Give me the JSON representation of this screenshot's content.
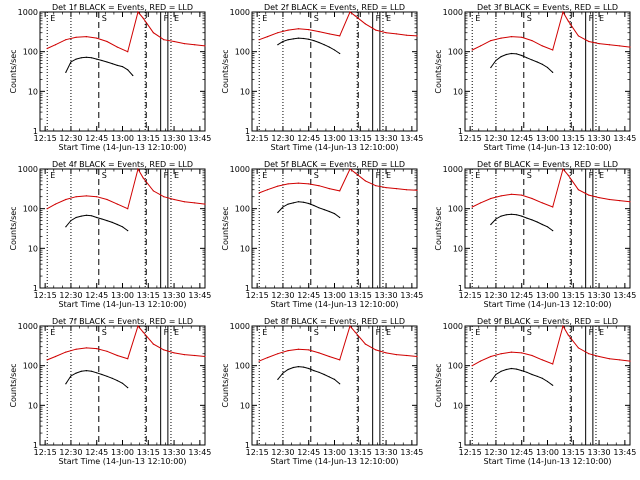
{
  "figure": {
    "x_tick_labels": [
      "12:15",
      "12:30",
      "12:45",
      "13:00",
      "13:15",
      "13:30",
      "13:45"
    ],
    "xlabel": "Start Time (14-Jun-13 12:10:00)",
    "ylabel": "Counts/sec",
    "y_tick_labels": [
      "1",
      "10",
      "100",
      "1000"
    ],
    "marker_letters": [
      "E",
      "S",
      "F",
      "E"
    ],
    "colors": {
      "events": "#000000",
      "lld": "#d00000",
      "axes": "#000000",
      "background": "#ffffff"
    }
  },
  "chart_data": [
    {
      "type": "line",
      "title": "Det 1f BLACK = Events, RED = LLD",
      "x_unit": "minutes",
      "xlim": [
        12.2,
        13.8
      ],
      "ylim": [
        1,
        1000
      ],
      "yscale": "log",
      "dotted_lines": [
        12.27,
        12.5,
        13.22,
        13.47
      ],
      "dashed_lines": [
        12.77,
        13.23
      ],
      "solid_lines": [
        13.37,
        13.44
      ],
      "series": [
        {
          "name": "Events",
          "color": "#000000",
          "x": [
            12.45,
            12.5,
            12.55,
            12.6,
            12.65,
            12.7,
            12.75,
            12.8,
            12.85,
            12.9,
            12.95,
            13.0,
            13.05,
            13.1
          ],
          "y": [
            30,
            55,
            65,
            70,
            72,
            70,
            65,
            60,
            55,
            50,
            45,
            42,
            35,
            25
          ]
        },
        {
          "name": "LLD",
          "color": "#d00000",
          "x": [
            12.27,
            12.35,
            12.45,
            12.55,
            12.65,
            12.75,
            12.85,
            12.95,
            13.05,
            13.15,
            13.2,
            13.3,
            13.4,
            13.5,
            13.6,
            13.7,
            13.8
          ],
          "y": [
            120,
            150,
            200,
            230,
            240,
            220,
            180,
            130,
            100,
            1000,
            700,
            300,
            200,
            180,
            160,
            150,
            140
          ]
        }
      ]
    },
    {
      "type": "line",
      "title": "Det 2f BLACK = Events, RED = LLD",
      "x_unit": "minutes",
      "xlim": [
        12.2,
        13.8
      ],
      "ylim": [
        1,
        1000
      ],
      "yscale": "log",
      "dotted_lines": [
        12.27,
        12.5,
        13.22,
        13.47
      ],
      "dashed_lines": [
        12.77,
        13.23
      ],
      "solid_lines": [
        13.37,
        13.44
      ],
      "series": [
        {
          "name": "Events",
          "color": "#000000",
          "x": [
            12.45,
            12.5,
            12.55,
            12.6,
            12.65,
            12.7,
            12.75,
            12.8,
            12.85,
            12.9,
            12.95,
            13.0,
            13.05
          ],
          "y": [
            150,
            180,
            200,
            210,
            220,
            215,
            205,
            190,
            170,
            150,
            130,
            110,
            90
          ]
        },
        {
          "name": "LLD",
          "color": "#d00000",
          "x": [
            12.27,
            12.35,
            12.45,
            12.55,
            12.65,
            12.75,
            12.85,
            12.95,
            13.05,
            13.15,
            13.2,
            13.3,
            13.4,
            13.5,
            13.6,
            13.7,
            13.8
          ],
          "y": [
            200,
            240,
            300,
            350,
            380,
            360,
            320,
            280,
            250,
            1000,
            800,
            500,
            350,
            300,
            280,
            260,
            250
          ]
        }
      ]
    },
    {
      "type": "line",
      "title": "Det 3f BLACK = Events, RED = LLD",
      "x_unit": "minutes",
      "xlim": [
        12.2,
        13.8
      ],
      "ylim": [
        1,
        1000
      ],
      "yscale": "log",
      "dotted_lines": [
        12.27,
        12.5,
        13.22,
        13.47
      ],
      "dashed_lines": [
        12.77,
        13.23
      ],
      "solid_lines": [
        13.37,
        13.44
      ],
      "series": [
        {
          "name": "Events",
          "color": "#000000",
          "x": [
            12.45,
            12.5,
            12.55,
            12.6,
            12.65,
            12.7,
            12.75,
            12.8,
            12.85,
            12.9,
            12.95,
            13.0,
            13.05
          ],
          "y": [
            40,
            60,
            75,
            85,
            90,
            88,
            80,
            70,
            62,
            55,
            48,
            40,
            30
          ]
        },
        {
          "name": "LLD",
          "color": "#d00000",
          "x": [
            12.27,
            12.35,
            12.45,
            12.55,
            12.65,
            12.75,
            12.85,
            12.95,
            13.05,
            13.15,
            13.2,
            13.3,
            13.4,
            13.5,
            13.6,
            13.7,
            13.8
          ],
          "y": [
            110,
            140,
            190,
            220,
            240,
            230,
            190,
            140,
            110,
            1000,
            600,
            250,
            180,
            160,
            150,
            140,
            130
          ]
        }
      ]
    },
    {
      "type": "line",
      "title": "Det 4f BLACK = Events, RED = LLD",
      "x_unit": "minutes",
      "xlim": [
        12.2,
        13.8
      ],
      "ylim": [
        1,
        1000
      ],
      "yscale": "log",
      "dotted_lines": [
        12.27,
        12.5,
        13.22,
        13.47
      ],
      "dashed_lines": [
        12.77,
        13.23
      ],
      "solid_lines": [
        13.37,
        13.44
      ],
      "series": [
        {
          "name": "Events",
          "color": "#000000",
          "x": [
            12.45,
            12.5,
            12.55,
            12.6,
            12.65,
            12.7,
            12.75,
            12.8,
            12.85,
            12.9,
            12.95,
            13.0,
            13.05
          ],
          "y": [
            35,
            50,
            60,
            65,
            68,
            66,
            60,
            55,
            50,
            45,
            40,
            35,
            28
          ]
        },
        {
          "name": "LLD",
          "color": "#d00000",
          "x": [
            12.27,
            12.35,
            12.45,
            12.55,
            12.65,
            12.75,
            12.85,
            12.95,
            13.05,
            13.15,
            13.2,
            13.3,
            13.4,
            13.5,
            13.6,
            13.7,
            13.8
          ],
          "y": [
            100,
            130,
            170,
            200,
            210,
            200,
            170,
            130,
            100,
            1000,
            600,
            280,
            200,
            170,
            150,
            140,
            130
          ]
        }
      ]
    },
    {
      "type": "line",
      "title": "Det 5f BLACK = Events, RED = LLD",
      "x_unit": "minutes",
      "xlim": [
        12.2,
        13.8
      ],
      "ylim": [
        1,
        1000
      ],
      "yscale": "log",
      "dotted_lines": [
        12.27,
        12.5,
        13.22,
        13.47
      ],
      "dashed_lines": [
        12.77,
        13.23
      ],
      "solid_lines": [
        13.37,
        13.44
      ],
      "series": [
        {
          "name": "Events",
          "color": "#000000",
          "x": [
            12.45,
            12.5,
            12.55,
            12.6,
            12.65,
            12.7,
            12.75,
            12.8,
            12.85,
            12.9,
            12.95,
            13.0,
            13.05
          ],
          "y": [
            80,
            110,
            130,
            140,
            150,
            145,
            135,
            120,
            105,
            95,
            85,
            75,
            60
          ]
        },
        {
          "name": "LLD",
          "color": "#d00000",
          "x": [
            12.27,
            12.35,
            12.45,
            12.55,
            12.65,
            12.75,
            12.85,
            12.95,
            13.05,
            13.15,
            13.2,
            13.3,
            13.4,
            13.5,
            13.6,
            13.7,
            13.8
          ],
          "y": [
            250,
            300,
            370,
            420,
            440,
            420,
            380,
            320,
            280,
            1000,
            800,
            500,
            380,
            340,
            320,
            300,
            290
          ]
        }
      ]
    },
    {
      "type": "line",
      "title": "Det 6f BLACK = Events, RED = LLD",
      "x_unit": "minutes",
      "xlim": [
        12.2,
        13.8
      ],
      "ylim": [
        1,
        1000
      ],
      "yscale": "log",
      "dotted_lines": [
        12.27,
        12.5,
        13.22,
        13.47
      ],
      "dashed_lines": [
        12.77,
        13.23
      ],
      "solid_lines": [
        13.37,
        13.44
      ],
      "series": [
        {
          "name": "Events",
          "color": "#000000",
          "x": [
            12.45,
            12.5,
            12.55,
            12.6,
            12.65,
            12.7,
            12.75,
            12.8,
            12.85,
            12.9,
            12.95,
            13.0,
            13.05
          ],
          "y": [
            40,
            55,
            65,
            70,
            72,
            70,
            65,
            58,
            52,
            46,
            40,
            35,
            28
          ]
        },
        {
          "name": "LLD",
          "color": "#d00000",
          "x": [
            12.27,
            12.35,
            12.45,
            12.55,
            12.65,
            12.75,
            12.85,
            12.95,
            13.05,
            13.15,
            13.2,
            13.3,
            13.4,
            13.5,
            13.6,
            13.7,
            13.8
          ],
          "y": [
            110,
            140,
            180,
            210,
            230,
            220,
            180,
            140,
            110,
            1000,
            700,
            300,
            220,
            190,
            170,
            160,
            150
          ]
        }
      ]
    },
    {
      "type": "line",
      "title": "Det 7f BLACK = Events, RED = LLD",
      "x_unit": "minutes",
      "xlim": [
        12.2,
        13.8
      ],
      "ylim": [
        1,
        1000
      ],
      "yscale": "log",
      "dotted_lines": [
        12.27,
        12.5,
        13.22,
        13.47
      ],
      "dashed_lines": [
        12.77,
        13.23
      ],
      "solid_lines": [
        13.37,
        13.44
      ],
      "series": [
        {
          "name": "Events",
          "color": "#000000",
          "x": [
            12.45,
            12.5,
            12.55,
            12.6,
            12.65,
            12.7,
            12.75,
            12.8,
            12.85,
            12.9,
            12.95,
            13.0,
            13.05
          ],
          "y": [
            35,
            55,
            65,
            72,
            75,
            72,
            66,
            60,
            54,
            48,
            42,
            36,
            28
          ]
        },
        {
          "name": "LLD",
          "color": "#d00000",
          "x": [
            12.27,
            12.35,
            12.45,
            12.55,
            12.65,
            12.75,
            12.85,
            12.95,
            13.05,
            13.15,
            13.2,
            13.3,
            13.4,
            13.5,
            13.6,
            13.7,
            13.8
          ],
          "y": [
            140,
            170,
            220,
            260,
            280,
            270,
            230,
            180,
            150,
            1000,
            700,
            350,
            250,
            210,
            190,
            180,
            170
          ]
        }
      ]
    },
    {
      "type": "line",
      "title": "Det 8f BLACK = Events, RED = LLD",
      "x_unit": "minutes",
      "xlim": [
        12.2,
        13.8
      ],
      "ylim": [
        1,
        1000
      ],
      "yscale": "log",
      "dotted_lines": [
        12.27,
        12.5,
        13.22,
        13.47
      ],
      "dashed_lines": [
        12.77,
        13.23
      ],
      "solid_lines": [
        13.37,
        13.44
      ],
      "series": [
        {
          "name": "Events",
          "color": "#000000",
          "x": [
            12.45,
            12.5,
            12.55,
            12.6,
            12.65,
            12.7,
            12.75,
            12.8,
            12.85,
            12.9,
            12.95,
            13.0,
            13.05
          ],
          "y": [
            45,
            65,
            80,
            90,
            95,
            92,
            85,
            75,
            68,
            60,
            52,
            45,
            35
          ]
        },
        {
          "name": "LLD",
          "color": "#d00000",
          "x": [
            12.27,
            12.35,
            12.45,
            12.55,
            12.65,
            12.75,
            12.85,
            12.95,
            13.05,
            13.15,
            13.2,
            13.3,
            13.4,
            13.5,
            13.6,
            13.7,
            13.8
          ],
          "y": [
            130,
            160,
            200,
            240,
            260,
            250,
            210,
            170,
            140,
            1000,
            700,
            350,
            250,
            210,
            190,
            180,
            170
          ]
        }
      ]
    },
    {
      "type": "line",
      "title": "Det 9f BLACK = Events, RED = LLD",
      "x_unit": "minutes",
      "xlim": [
        12.2,
        13.8
      ],
      "ylim": [
        1,
        1000
      ],
      "yscale": "log",
      "dotted_lines": [
        12.27,
        12.5,
        13.22,
        13.47
      ],
      "dashed_lines": [
        12.77,
        13.23
      ],
      "solid_lines": [
        13.37,
        13.44
      ],
      "series": [
        {
          "name": "Events",
          "color": "#000000",
          "x": [
            12.45,
            12.5,
            12.55,
            12.6,
            12.65,
            12.7,
            12.75,
            12.8,
            12.85,
            12.9,
            12.95,
            13.0,
            13.05
          ],
          "y": [
            40,
            60,
            72,
            80,
            85,
            82,
            75,
            68,
            60,
            54,
            48,
            40,
            32
          ]
        },
        {
          "name": "LLD",
          "color": "#d00000",
          "x": [
            12.27,
            12.35,
            12.45,
            12.55,
            12.65,
            12.75,
            12.85,
            12.95,
            13.05,
            13.15,
            13.2,
            13.3,
            13.4,
            13.5,
            13.6,
            13.7,
            13.8
          ],
          "y": [
            100,
            130,
            170,
            200,
            220,
            210,
            180,
            140,
            110,
            1000,
            600,
            280,
            200,
            170,
            150,
            140,
            130
          ]
        }
      ]
    }
  ]
}
